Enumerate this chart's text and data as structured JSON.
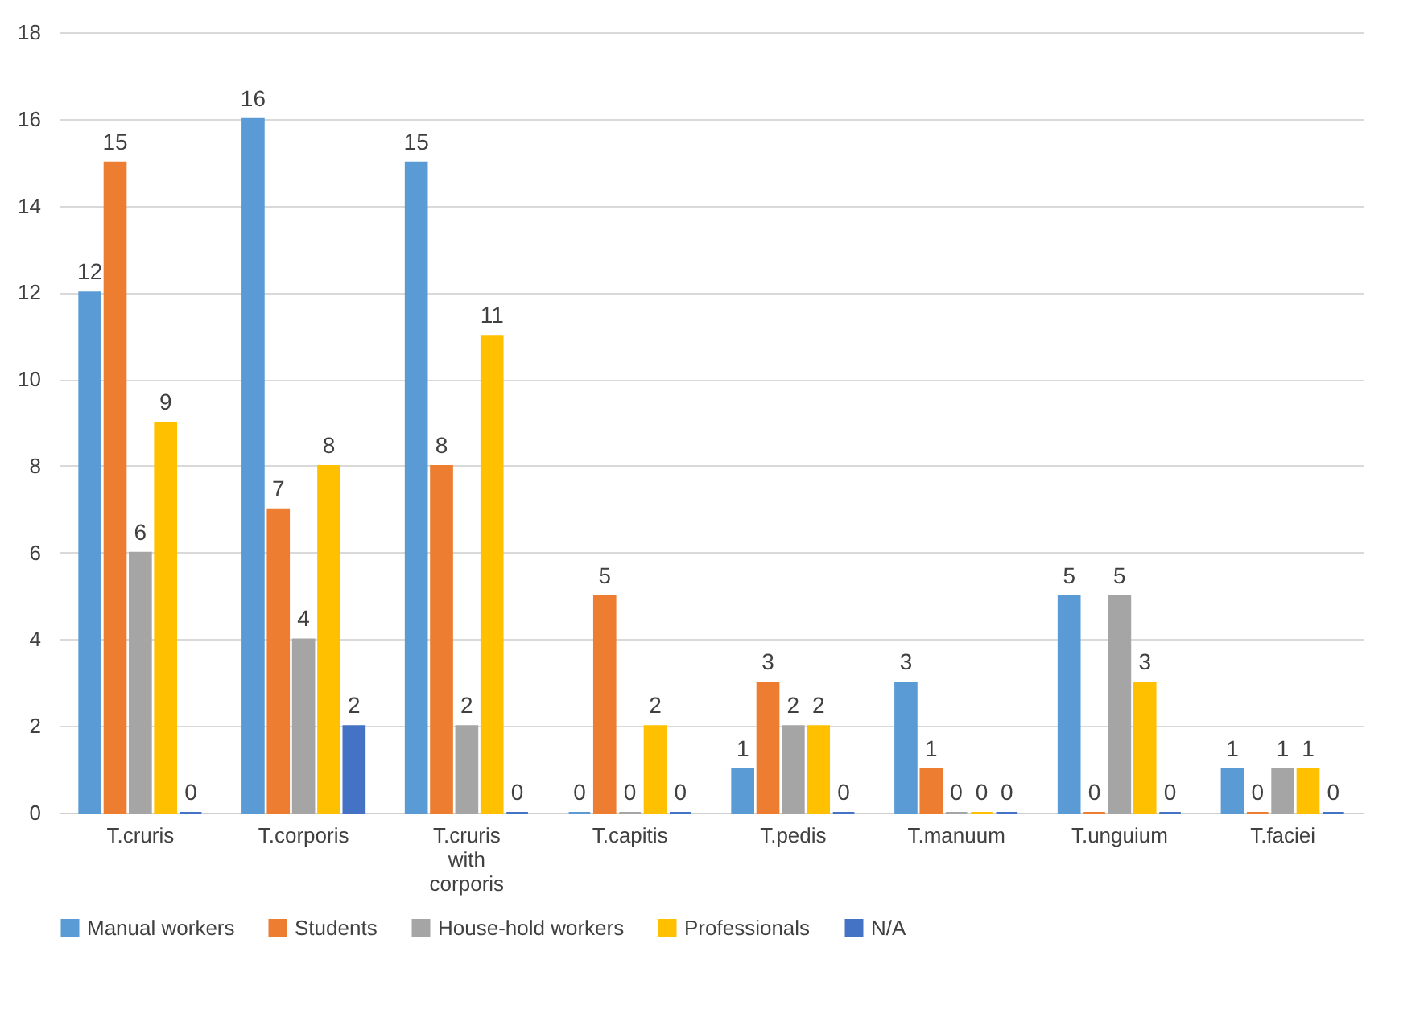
{
  "chart_data": {
    "type": "bar",
    "categories": [
      "T.cruris",
      "T.corporis",
      "T.cruris with corporis",
      "T.capitis",
      "T.pedis",
      "T.manuum",
      "T.unguium",
      "T.faciei"
    ],
    "series": [
      {
        "name": "Manual workers",
        "color": "#5b9bd5",
        "values": [
          12,
          16,
          15,
          0,
          1,
          3,
          5,
          1
        ]
      },
      {
        "name": "Students",
        "color": "#ed7d31",
        "values": [
          15,
          7,
          8,
          5,
          3,
          1,
          0,
          0
        ]
      },
      {
        "name": "House-hold workers",
        "color": "#a5a5a5",
        "values": [
          6,
          4,
          2,
          0,
          2,
          0,
          5,
          1
        ]
      },
      {
        "name": "Professionals",
        "color": "#ffc000",
        "values": [
          9,
          8,
          11,
          2,
          2,
          0,
          3,
          1
        ]
      },
      {
        "name": "N/A",
        "color": "#4472c4",
        "values": [
          0,
          2,
          0,
          0,
          0,
          0,
          0,
          0
        ]
      }
    ],
    "ylim": [
      0,
      18
    ],
    "yticks": [
      0,
      2,
      4,
      6,
      8,
      10,
      12,
      14,
      16,
      18
    ],
    "grid": "y",
    "legend": "bottom",
    "data_labels": true
  }
}
